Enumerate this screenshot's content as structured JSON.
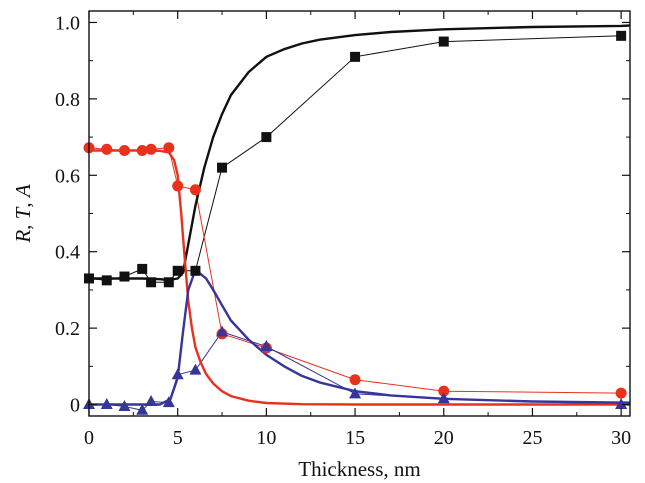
{
  "chart_data": {
    "type": "line",
    "xlabel": "Thickness, nm",
    "ylabel": [
      "R",
      ", ",
      "T",
      ", ",
      "A"
    ],
    "xlim": [
      0,
      30.5
    ],
    "ylim": [
      -0.03,
      1.03
    ],
    "xticks": [
      0,
      5,
      10,
      15,
      20,
      25,
      30
    ],
    "xtick_labels": [
      "0",
      "5",
      "10",
      "15",
      "20",
      "25",
      "30"
    ],
    "yticks": [
      0,
      0.2,
      0.4,
      0.6,
      0.8,
      1.0
    ],
    "ytick_labels": [
      "0",
      "0.2",
      "0.4",
      "0.6",
      "0.8",
      "1.0"
    ],
    "grid": false,
    "series": [
      {
        "kind": "measured",
        "marker": "square",
        "color": "#111111",
        "x": [
          0,
          1,
          2,
          3,
          3.5,
          4.5,
          5,
          6,
          7.5,
          10,
          15,
          20,
          30
        ],
        "y": [
          0.33,
          0.325,
          0.335,
          0.355,
          0.32,
          0.32,
          0.35,
          0.35,
          0.62,
          0.7,
          0.91,
          0.95,
          0.965
        ]
      },
      {
        "kind": "measured",
        "marker": "circle",
        "color": "#e8321e",
        "x": [
          0,
          1,
          2,
          3,
          3.5,
          4.5,
          5,
          6,
          7.5,
          10,
          15,
          20,
          30
        ],
        "y": [
          0.672,
          0.668,
          0.665,
          0.665,
          0.668,
          0.672,
          0.572,
          0.562,
          0.185,
          0.148,
          0.065,
          0.035,
          0.03
        ]
      },
      {
        "kind": "measured",
        "marker": "triangle",
        "color": "#35359a",
        "x": [
          0,
          1,
          2,
          3,
          3.5,
          4.5,
          5,
          6,
          7.5,
          10,
          15,
          20,
          30
        ],
        "y": [
          0.0,
          0.0,
          -0.005,
          -0.015,
          0.008,
          0.005,
          0.078,
          0.09,
          0.19,
          0.152,
          0.028,
          0.015,
          0.0
        ]
      },
      {
        "kind": "calculated",
        "color": "#111111",
        "x": [
          0,
          1,
          2,
          3,
          4,
          4.5,
          5,
          5.3,
          5.6,
          6,
          6.5,
          7,
          7.5,
          8,
          9,
          10,
          11,
          12,
          13,
          15,
          17,
          20,
          25,
          30,
          30.5
        ],
        "y": [
          0.33,
          0.33,
          0.33,
          0.33,
          0.328,
          0.326,
          0.33,
          0.345,
          0.42,
          0.52,
          0.62,
          0.7,
          0.76,
          0.81,
          0.87,
          0.91,
          0.93,
          0.945,
          0.955,
          0.967,
          0.975,
          0.982,
          0.988,
          0.991,
          0.992
        ]
      },
      {
        "kind": "calculated",
        "color": "#e8321e",
        "x": [
          0,
          1,
          2,
          3,
          4,
          4.5,
          4.8,
          5,
          5.2,
          5.4,
          5.6,
          5.8,
          6,
          6.3,
          6.6,
          7,
          7.5,
          8,
          9,
          10,
          12,
          15,
          20,
          30,
          30.5
        ],
        "y": [
          0.665,
          0.665,
          0.665,
          0.665,
          0.664,
          0.66,
          0.64,
          0.6,
          0.5,
          0.38,
          0.27,
          0.2,
          0.15,
          0.11,
          0.08,
          0.055,
          0.035,
          0.022,
          0.01,
          0.004,
          0.001,
          0.0,
          0.0,
          0.0,
          0.0
        ]
      },
      {
        "kind": "calculated",
        "color": "#35359a",
        "x": [
          0,
          4,
          4.6,
          5,
          5.3,
          5.6,
          5.9,
          6.2,
          6.6,
          7,
          7.5,
          8,
          9,
          10,
          11,
          12,
          13,
          15,
          17,
          20,
          25,
          30,
          30.5
        ],
        "y": [
          0.0,
          0.0,
          0.015,
          0.07,
          0.19,
          0.3,
          0.34,
          0.345,
          0.33,
          0.3,
          0.26,
          0.22,
          0.17,
          0.13,
          0.1,
          0.075,
          0.058,
          0.035,
          0.024,
          0.015,
          0.008,
          0.005,
          0.005
        ]
      }
    ]
  }
}
